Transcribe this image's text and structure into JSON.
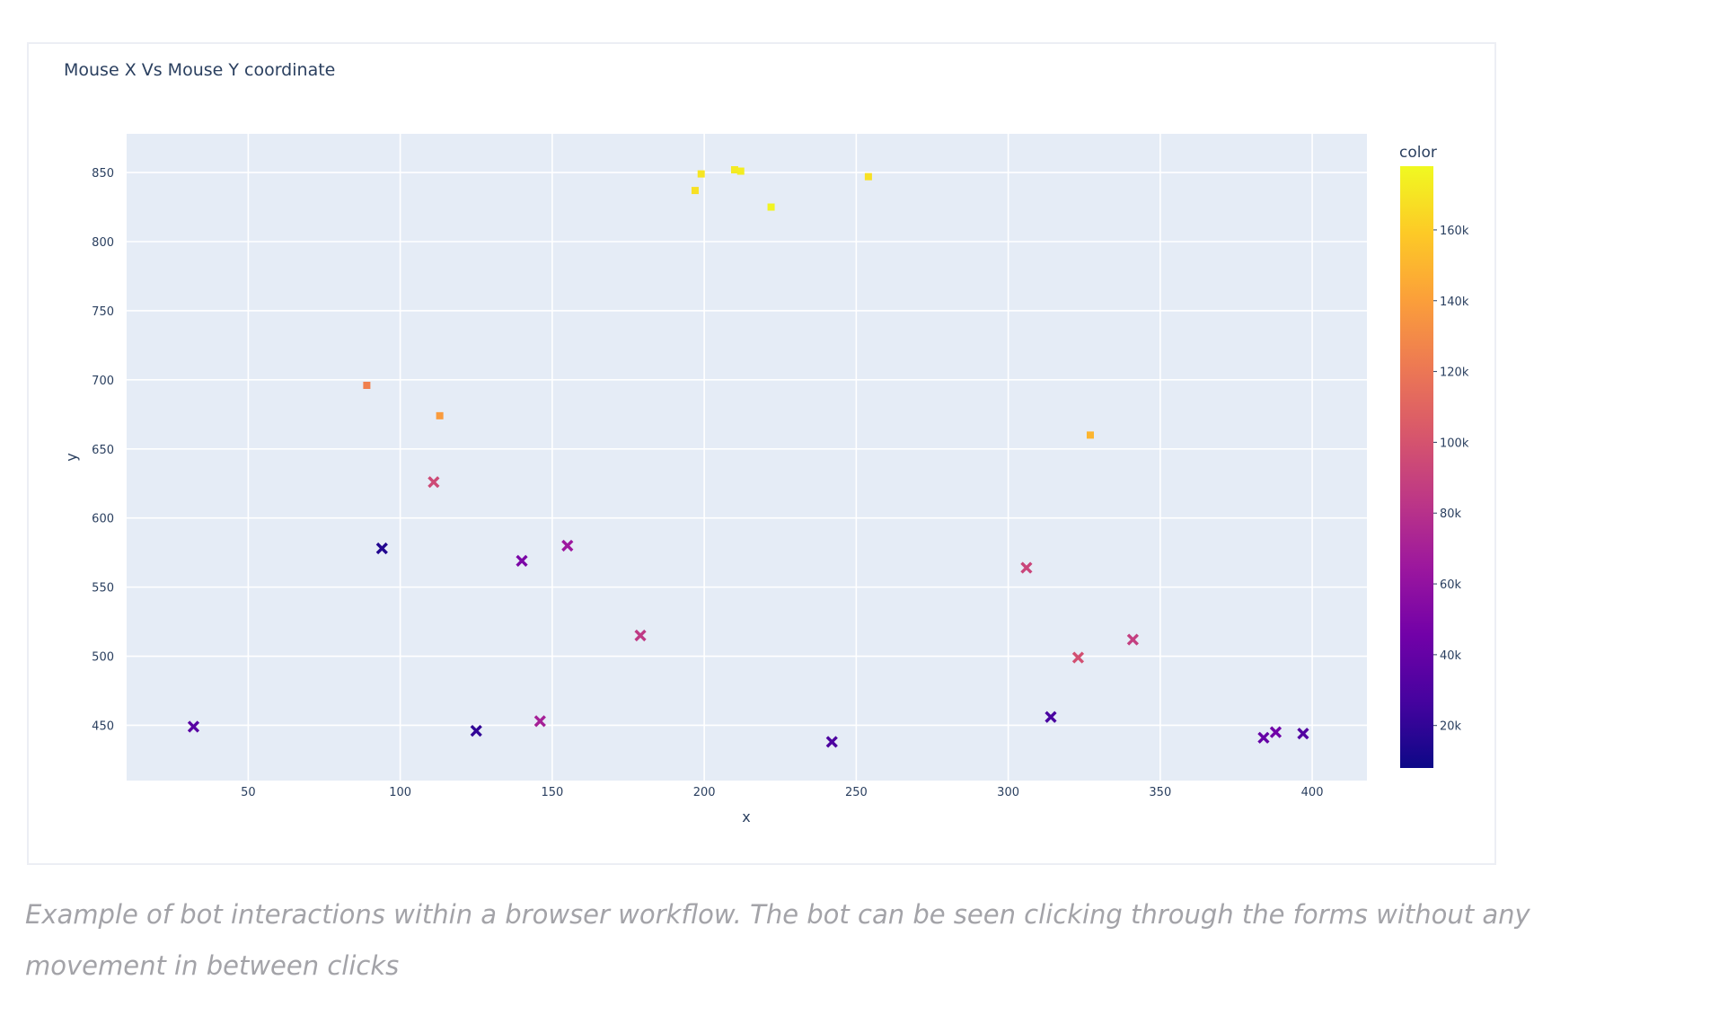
{
  "chart_data": {
    "type": "scatter",
    "title": "Mouse X Vs Mouse Y coordinate",
    "xlabel": "x",
    "ylabel": "y",
    "xlim": [
      10,
      418
    ],
    "ylim": [
      410,
      878
    ],
    "xticks": [
      50,
      100,
      150,
      200,
      250,
      300,
      350,
      400
    ],
    "yticks": [
      450,
      500,
      550,
      600,
      650,
      700,
      750,
      800,
      850
    ],
    "grid": true,
    "colorbar": {
      "title": "color",
      "range": [
        8000,
        178000
      ],
      "ticks": [
        20000,
        40000,
        60000,
        80000,
        100000,
        120000,
        140000,
        160000
      ],
      "tick_labels": [
        "20k",
        "40k",
        "60k",
        "80k",
        "100k",
        "120k",
        "140k",
        "160k"
      ],
      "colorscale": [
        "#0d0887",
        "#46039f",
        "#7201a8",
        "#9c179e",
        "#bd3786",
        "#d8576b",
        "#ed7953",
        "#fb9f3a",
        "#fdca26",
        "#f0f921"
      ]
    },
    "points": [
      {
        "x": 32,
        "y": 449,
        "color": 35000,
        "symbol": "x"
      },
      {
        "x": 89,
        "y": 696,
        "color": 125000,
        "symbol": "square"
      },
      {
        "x": 94,
        "y": 578,
        "color": 15000,
        "symbol": "x"
      },
      {
        "x": 111,
        "y": 626,
        "color": 95000,
        "symbol": "x"
      },
      {
        "x": 113,
        "y": 674,
        "color": 138000,
        "symbol": "square"
      },
      {
        "x": 125,
        "y": 446,
        "color": 20000,
        "symbol": "x"
      },
      {
        "x": 140,
        "y": 569,
        "color": 50000,
        "symbol": "x"
      },
      {
        "x": 146,
        "y": 453,
        "color": 70000,
        "symbol": "x"
      },
      {
        "x": 155,
        "y": 580,
        "color": 65000,
        "symbol": "x"
      },
      {
        "x": 179,
        "y": 515,
        "color": 85000,
        "symbol": "x"
      },
      {
        "x": 197,
        "y": 837,
        "color": 168000,
        "symbol": "square"
      },
      {
        "x": 199,
        "y": 849,
        "color": 170000,
        "symbol": "square"
      },
      {
        "x": 210,
        "y": 852,
        "color": 172000,
        "symbol": "square"
      },
      {
        "x": 212,
        "y": 851,
        "color": 173000,
        "symbol": "square"
      },
      {
        "x": 222,
        "y": 825,
        "color": 176000,
        "symbol": "square"
      },
      {
        "x": 242,
        "y": 438,
        "color": 30000,
        "symbol": "x"
      },
      {
        "x": 254,
        "y": 847,
        "color": 168000,
        "symbol": "square"
      },
      {
        "x": 306,
        "y": 564,
        "color": 92000,
        "symbol": "x"
      },
      {
        "x": 314,
        "y": 456,
        "color": 28000,
        "symbol": "x"
      },
      {
        "x": 323,
        "y": 499,
        "color": 98000,
        "symbol": "x"
      },
      {
        "x": 327,
        "y": 660,
        "color": 150000,
        "symbol": "square"
      },
      {
        "x": 341,
        "y": 512,
        "color": 88000,
        "symbol": "x"
      },
      {
        "x": 384,
        "y": 441,
        "color": 40000,
        "symbol": "x"
      },
      {
        "x": 388,
        "y": 445,
        "color": 45000,
        "symbol": "x"
      },
      {
        "x": 397,
        "y": 444,
        "color": 32000,
        "symbol": "x"
      }
    ]
  },
  "caption": "Example of bot interactions within a browser workflow. The bot can be seen clicking through the forms without any movement in between clicks"
}
